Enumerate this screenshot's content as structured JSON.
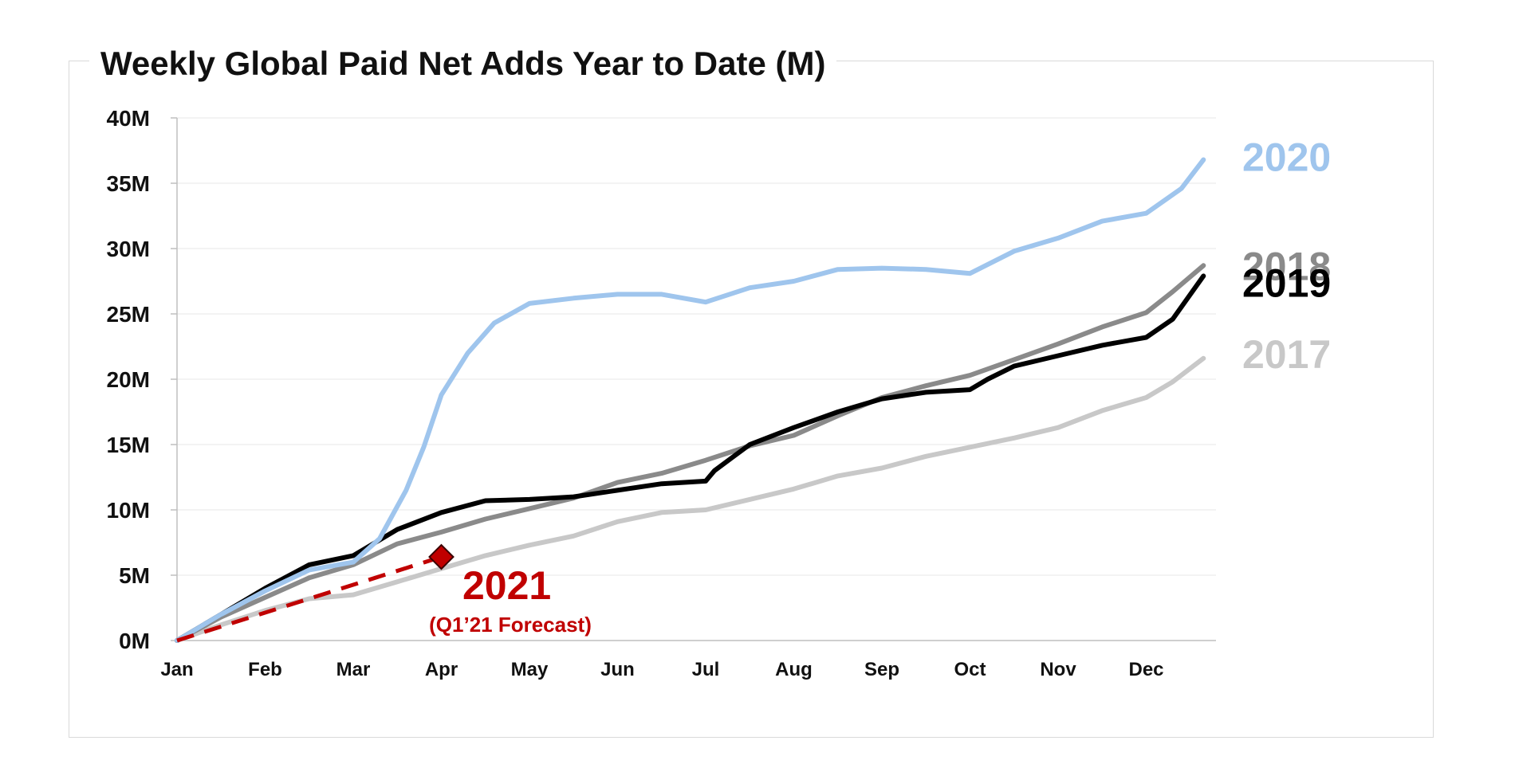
{
  "chart_data": {
    "type": "line",
    "title": "Weekly Global Paid Net Adds Year to Date (M)",
    "xlabel": "",
    "ylabel": "",
    "x_ticks": [
      "Jan",
      "Feb",
      "Mar",
      "Apr",
      "May",
      "Jun",
      "Jul",
      "Aug",
      "Sep",
      "Oct",
      "Nov",
      "Dec"
    ],
    "y_ticks": [
      "0M",
      "5M",
      "10M",
      "15M",
      "20M",
      "25M",
      "30M",
      "35M",
      "40M"
    ],
    "ylim": [
      0,
      40
    ],
    "xlim": [
      0,
      11.65
    ],
    "grid": true,
    "legend": "direct labels at line ends",
    "series": [
      {
        "name": "2017",
        "color": "#c8c8c8",
        "x": [
          0,
          0.5,
          1,
          1.5,
          2,
          2.5,
          3,
          3.5,
          4,
          4.5,
          5,
          5.5,
          6,
          6.5,
          7,
          7.5,
          8,
          8.5,
          9,
          9.5,
          10,
          10.5,
          11,
          11.3,
          11.65
        ],
        "y": [
          0,
          1.2,
          2.3,
          3.2,
          3.5,
          4.5,
          5.5,
          6.5,
          7.3,
          8,
          9.1,
          9.8,
          10,
          10.8,
          11.6,
          12.6,
          13.2,
          14.1,
          14.8,
          15.5,
          16.3,
          17.6,
          18.6,
          19.8,
          21.6
        ]
      },
      {
        "name": "2018",
        "color": "#8a8a8a",
        "x": [
          0,
          0.5,
          1,
          1.5,
          2,
          2.5,
          3,
          3.5,
          4,
          4.5,
          5,
          5.5,
          6,
          6.5,
          7,
          7.5,
          8,
          8.5,
          9,
          9.5,
          10,
          10.5,
          11,
          11.3,
          11.65
        ],
        "y": [
          0,
          1.8,
          3.3,
          4.8,
          5.8,
          7.4,
          8.3,
          9.3,
          10.1,
          10.9,
          12.1,
          12.8,
          13.8,
          14.9,
          15.7,
          17.2,
          18.6,
          19.5,
          20.3,
          21.5,
          22.7,
          24,
          25.1,
          26.7,
          28.7
        ]
      },
      {
        "name": "2019",
        "color": "#000000",
        "x": [
          0,
          0.5,
          1,
          1.5,
          2,
          2.5,
          3,
          3.5,
          4,
          4.5,
          5,
          5.5,
          6,
          6.1,
          6.3,
          6.5,
          7,
          7.5,
          8,
          8.5,
          9,
          9.2,
          9.5,
          10,
          10.5,
          11,
          11.3,
          11.65
        ],
        "y": [
          0,
          2,
          4,
          5.8,
          6.5,
          8.5,
          9.8,
          10.7,
          10.8,
          11,
          11.5,
          12,
          12.2,
          13,
          14,
          15,
          16.3,
          17.5,
          18.5,
          19,
          19.2,
          20,
          21,
          21.8,
          22.6,
          23.2,
          24.6,
          27.9
        ]
      },
      {
        "name": "2020",
        "color": "#9fc5ed",
        "x": [
          0,
          0.5,
          1,
          1.5,
          2,
          2.3,
          2.6,
          2.8,
          3,
          3.3,
          3.6,
          4,
          4.5,
          5,
          5.5,
          6,
          6.5,
          7,
          7.5,
          8,
          8.5,
          9,
          9.5,
          10,
          10.5,
          11,
          11.4,
          11.65
        ],
        "y": [
          0,
          2,
          3.8,
          5.4,
          6,
          7.8,
          11.5,
          14.8,
          18.8,
          22,
          24.3,
          25.8,
          26.2,
          26.5,
          26.5,
          25.9,
          27,
          27.5,
          28.4,
          28.5,
          28.4,
          28.1,
          29.8,
          30.8,
          32.1,
          32.7,
          34.6,
          36.8
        ]
      }
    ],
    "forecast": {
      "name": "2021",
      "sublabel": "(Q1’21 Forecast)",
      "color": "#c00000",
      "x": [
        0,
        3
      ],
      "y": [
        0,
        6.4
      ],
      "style": "dashed",
      "marker": "diamond"
    }
  }
}
